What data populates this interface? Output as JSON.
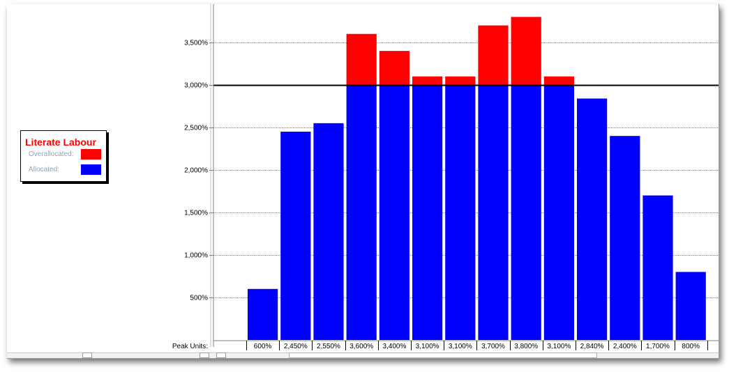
{
  "legend": {
    "title": "Literate Labour",
    "overallocated_label": "Overallocated:",
    "allocated_label": "Allocated:"
  },
  "colors": {
    "overallocated": "#ff0000",
    "allocated": "#0000ff",
    "max_line": "#000000"
  },
  "chart_data": {
    "type": "bar",
    "stacked": true,
    "categories": [
      "",
      "",
      "",
      "",
      "",
      "",
      "",
      "",
      "",
      "",
      "",
      "",
      "",
      ""
    ],
    "series": [
      {
        "name": "Allocated:",
        "values": [
          600,
          2450,
          2550,
          3000,
          3000,
          3000,
          3000,
          3000,
          3000,
          3000,
          2840,
          2400,
          1700,
          800
        ]
      },
      {
        "name": "Overallocated:",
        "values": [
          0,
          0,
          0,
          600,
          400,
          100,
          100,
          700,
          800,
          100,
          0,
          0,
          0,
          0
        ]
      }
    ],
    "max_units": 3000,
    "ylim": [
      0,
      3950
    ],
    "y_ticks": [
      500,
      1000,
      1500,
      2000,
      2500,
      3000,
      3500
    ],
    "y_tick_labels": [
      "500%",
      "1,000%",
      "1,500%",
      "2,000%",
      "2,500%",
      "3,000%",
      "3,500%"
    ],
    "peak_units_label": "Peak Units:",
    "peak_units": [
      "600%",
      "2,450%",
      "2,550%",
      "3,600%",
      "3,400%",
      "3,100%",
      "3,100%",
      "3,700%",
      "3,800%",
      "3,100%",
      "2,840%",
      "2,400%",
      "1,700%",
      "800%"
    ],
    "grid": "horizontal-dotted",
    "legend_position": "left"
  }
}
